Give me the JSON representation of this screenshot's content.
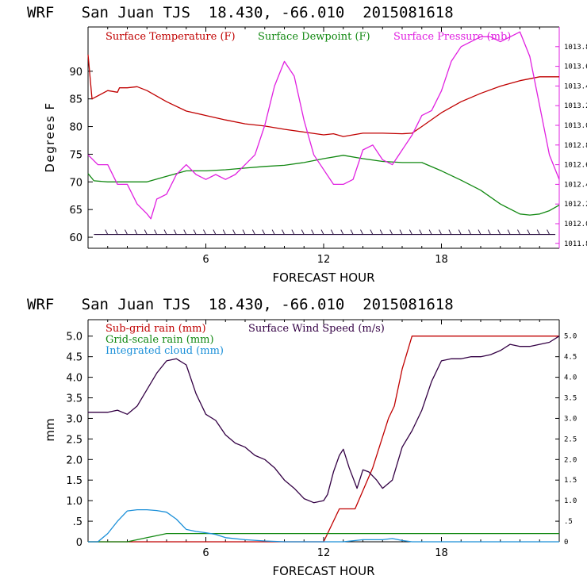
{
  "charts": [
    {
      "type": "line",
      "title": "WRF   San Juan TJS  18.430, -66.010  2015081618",
      "xlabel": "FORECAST HOUR",
      "ylabel": "Degrees F",
      "xlim": [
        0,
        24
      ],
      "ylim": [
        58,
        98
      ],
      "x_ticks": [
        6,
        12,
        18
      ],
      "y_ticks": [
        60,
        65,
        70,
        75,
        80,
        85,
        90
      ],
      "right_ylim": [
        1011.75,
        1014.0
      ],
      "right_ticks": [
        "1011.8",
        "1012.0",
        "1012.2",
        "1012.4",
        "1012.6",
        "1012.8",
        "1013.0",
        "1013.2",
        "1013.4",
        "1013.6",
        "1013.8"
      ],
      "right_tick_values": [
        1011.8,
        1012.0,
        1012.2,
        1012.4,
        1012.6,
        1012.8,
        1013.0,
        1013.2,
        1013.4,
        1013.6,
        1013.8
      ],
      "wind_barb_level": 60.5,
      "legend": [
        {
          "name": "Surface Temperature (F)",
          "color": "#c00000"
        },
        {
          "name": "Surface Dewpoint (F)",
          "color": "#118811"
        },
        {
          "name": "Surface Pressure (mb)",
          "color": "#e020e0"
        }
      ],
      "series": [
        {
          "name": "Surface Temperature (F)",
          "color": "#c00000",
          "axis": "left",
          "x": [
            0,
            0.2,
            1,
            1.5,
            1.6,
            2,
            2.5,
            3,
            4,
            5,
            6,
            7,
            8,
            9,
            10,
            11,
            12,
            12.5,
            13,
            13.5,
            14,
            15,
            16,
            16.5,
            17,
            18,
            19,
            20,
            21,
            22,
            23,
            24
          ],
          "y": [
            93,
            85,
            86.5,
            86.2,
            87,
            87,
            87.2,
            86.5,
            84.5,
            82.8,
            82,
            81.2,
            80.5,
            80.1,
            79.5,
            79,
            78.5,
            78.7,
            78.2,
            78.5,
            78.8,
            78.8,
            78.7,
            78.8,
            80,
            82.5,
            84.5,
            86,
            87.3,
            88.3,
            89,
            89
          ]
        },
        {
          "name": "Surface Dewpoint (F)",
          "color": "#118811",
          "axis": "left",
          "x": [
            0,
            0.3,
            1,
            2,
            3,
            4,
            5,
            6,
            7,
            8,
            9,
            10,
            11,
            12,
            13,
            14,
            15,
            16,
            17,
            18,
            19,
            20,
            21,
            22,
            22.5,
            23,
            23.5,
            24
          ],
          "y": [
            71.5,
            70.2,
            70,
            70,
            70,
            71,
            72,
            72,
            72.2,
            72.5,
            72.8,
            73,
            73.5,
            74.2,
            74.8,
            74.2,
            73.7,
            73.5,
            73.5,
            72,
            70.3,
            68.5,
            66,
            64.2,
            64,
            64.2,
            64.8,
            65.8
          ]
        },
        {
          "name": "Surface Pressure (mb)",
          "color": "#e020e0",
          "axis": "right",
          "x": [
            0,
            0.5,
            1,
            1.5,
            2,
            2.5,
            3,
            3.2,
            3.5,
            4,
            4.5,
            5,
            5.5,
            6,
            6.5,
            7,
            7.5,
            8,
            8.5,
            9,
            9.5,
            10,
            10.5,
            11,
            11.5,
            12,
            12.5,
            13,
            13.5,
            14,
            14.5,
            15,
            15.5,
            16,
            16.5,
            17,
            17.5,
            18,
            18.5,
            19,
            19.5,
            20,
            20.5,
            21,
            21.5,
            22,
            22.5,
            23,
            23.5,
            24
          ],
          "y": [
            1012.7,
            1012.6,
            1012.6,
            1012.4,
            1012.4,
            1012.2,
            1012.1,
            1012.05,
            1012.25,
            1012.3,
            1012.5,
            1012.6,
            1012.5,
            1012.45,
            1012.5,
            1012.45,
            1012.5,
            1012.6,
            1012.7,
            1013.0,
            1013.4,
            1013.65,
            1013.5,
            1013.05,
            1012.7,
            1012.55,
            1012.4,
            1012.4,
            1012.45,
            1012.75,
            1012.8,
            1012.65,
            1012.6,
            1012.75,
            1012.9,
            1013.1,
            1013.15,
            1013.35,
            1013.65,
            1013.8,
            1013.85,
            1013.9,
            1013.9,
            1013.85,
            1013.9,
            1013.95,
            1013.7,
            1013.2,
            1012.7,
            1012.45
          ]
        }
      ]
    },
    {
      "type": "line",
      "title": "WRF   San Juan TJS  18.430, -66.010  2015081618",
      "xlabel": "FORECAST HOUR",
      "ylabel": "mm",
      "xlim": [
        0,
        24
      ],
      "ylim": [
        0,
        5.4
      ],
      "x_ticks": [
        6,
        12,
        18
      ],
      "y_ticks": [
        "0",
        ".5",
        "1.0",
        "1.5",
        "2.0",
        "2.5",
        "3.0",
        "3.5",
        "4.0",
        "4.5",
        "5.0"
      ],
      "y_tick_values": [
        0,
        0.5,
        1,
        1.5,
        2,
        2.5,
        3,
        3.5,
        4,
        4.5,
        5
      ],
      "right_ylim": [
        0,
        5.4
      ],
      "right_ticks": [
        "0",
        ".5",
        "1.0",
        "1.5",
        "2.0",
        "2.5",
        "3.0",
        "3.5",
        "4.0",
        "4.5",
        "5.0"
      ],
      "right_tick_values": [
        0,
        0.5,
        1,
        1.5,
        2,
        2.5,
        3,
        3.5,
        4,
        4.5,
        5
      ],
      "legend": [
        {
          "name": "Sub-grid rain (mm)",
          "color": "#c00000"
        },
        {
          "name": "Surface Wind Speed (m/s)",
          "color": "#330044"
        },
        {
          "name": "Grid-scale rain (mm)",
          "color": "#118811"
        },
        {
          "name": "Integrated cloud (mm)",
          "color": "#1a8fd8"
        }
      ],
      "series": [
        {
          "name": "Sub-grid rain (mm)",
          "color": "#c00000",
          "axis": "left",
          "x": [
            0,
            12,
            12.8,
            13.6,
            14.5,
            15.3,
            15.6,
            16,
            16.5,
            20,
            24
          ],
          "y": [
            0,
            0,
            0.8,
            0.8,
            1.8,
            3,
            3.3,
            4.2,
            5,
            5,
            5
          ]
        },
        {
          "name": "Surface Wind Speed (m/s)",
          "color": "#330044",
          "axis": "right",
          "x": [
            0,
            0.5,
            1,
            1.5,
            2,
            2.5,
            3,
            3.5,
            4,
            4.5,
            5,
            5.5,
            6,
            6.5,
            7,
            7.5,
            8,
            8.5,
            9,
            9.5,
            10,
            10.5,
            11,
            11.5,
            12,
            12.2,
            12.5,
            12.8,
            13,
            13.3,
            13.7,
            14,
            14.3,
            14.7,
            15,
            15.5,
            16,
            16.5,
            17,
            17.5,
            18,
            18.5,
            19,
            19.5,
            20,
            20.5,
            21,
            21.5,
            22,
            22.5,
            23,
            23.5,
            24
          ],
          "y": [
            3.15,
            3.15,
            3.15,
            3.2,
            3.1,
            3.3,
            3.7,
            4.1,
            4.4,
            4.45,
            4.3,
            3.6,
            3.1,
            2.95,
            2.6,
            2.4,
            2.3,
            2.1,
            2.0,
            1.8,
            1.5,
            1.3,
            1.05,
            0.95,
            1.0,
            1.15,
            1.7,
            2.1,
            2.25,
            1.8,
            1.3,
            1.75,
            1.7,
            1.5,
            1.3,
            1.5,
            2.3,
            2.7,
            3.2,
            3.9,
            4.4,
            4.45,
            4.45,
            4.5,
            4.5,
            4.55,
            4.65,
            4.8,
            4.75,
            4.75,
            4.8,
            4.85,
            5.0
          ]
        },
        {
          "name": "Grid-scale rain (mm)",
          "color": "#118811",
          "axis": "left",
          "x": [
            0,
            2,
            3,
            3.5,
            4,
            6,
            8,
            12,
            16,
            20,
            24
          ],
          "y": [
            0,
            0,
            0.1,
            0.15,
            0.2,
            0.2,
            0.2,
            0.2,
            0.2,
            0.2,
            0.2
          ]
        },
        {
          "name": "Integrated cloud (mm)",
          "color": "#1a8fd8",
          "axis": "left",
          "x": [
            0,
            0.5,
            1,
            1.5,
            2,
            2.5,
            3,
            3.5,
            4,
            4.5,
            5,
            5.5,
            6,
            6.5,
            7,
            8,
            9,
            10,
            11,
            12,
            13,
            14,
            15,
            15.5,
            16,
            16.5,
            17,
            24
          ],
          "y": [
            0,
            0,
            0.2,
            0.5,
            0.75,
            0.78,
            0.78,
            0.76,
            0.72,
            0.55,
            0.3,
            0.25,
            0.22,
            0.18,
            0.1,
            0.05,
            0.02,
            0,
            0,
            0,
            0,
            0.05,
            0.05,
            0.08,
            0.03,
            0,
            0,
            0
          ]
        }
      ]
    }
  ]
}
